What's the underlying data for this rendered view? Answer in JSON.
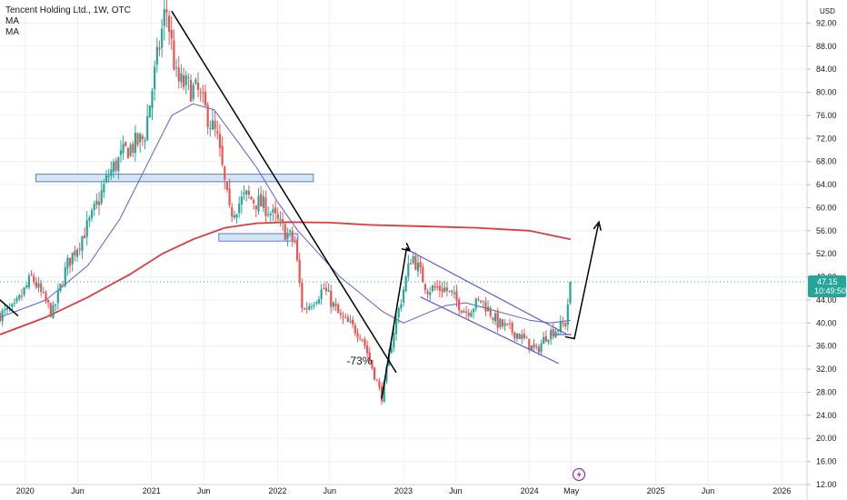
{
  "legend": {
    "symbol_line": "Tencent Holding Ltd., 1W, OTC",
    "ma1": "MA",
    "ma2": "MA"
  },
  "currency_label": "USD",
  "price_badge": {
    "price": "47.15",
    "countdown": "10:49:50"
  },
  "annotation": "-73%",
  "colors": {
    "up": "#26a69a",
    "down": "#ef5350",
    "ma_fast": "#5b5bd6",
    "ma_slow": "#e03a3e",
    "zone_fill": "#cfe0f5",
    "zone_stroke": "#5b7fc4",
    "channel": "#5b5bd6",
    "badge": "#26a69a"
  },
  "chart_data": {
    "type": "candlestick",
    "title": "Tencent Holding Ltd., 1W, OTC",
    "xlabel": "",
    "ylabel": "",
    "ylim": [
      12,
      96
    ],
    "yticks": [
      12.0,
      16.0,
      20.0,
      24.0,
      28.0,
      32.0,
      36.0,
      40.0,
      44.0,
      48.0,
      52.0,
      56.0,
      60.0,
      64.0,
      68.0,
      72.0,
      76.0,
      80.0,
      84.0,
      88.0,
      92.0
    ],
    "xlim": [
      "2019-10-20",
      "2026-03-15"
    ],
    "xticks": [
      {
        "date": "2020-01-01",
        "label": "2020"
      },
      {
        "date": "2020-06-01",
        "label": "Jun"
      },
      {
        "date": "2021-01-01",
        "label": "2021"
      },
      {
        "date": "2021-06-01",
        "label": "Jun"
      },
      {
        "date": "2022-01-01",
        "label": "2022"
      },
      {
        "date": "2022-06-01",
        "label": "Jun"
      },
      {
        "date": "2023-01-01",
        "label": "2023"
      },
      {
        "date": "2023-06-01",
        "label": "Jun"
      },
      {
        "date": "2024-01-01",
        "label": "2024"
      },
      {
        "date": "2024-05-01",
        "label": "May"
      },
      {
        "date": "2025-01-01",
        "label": "2025"
      },
      {
        "date": "2025-06-01",
        "label": "Jun"
      },
      {
        "date": "2026-01-01",
        "label": "2026"
      }
    ],
    "price_path": [
      [
        "2019-10-20",
        41.5
      ],
      [
        "2019-12-01",
        42.5
      ],
      [
        "2020-01-20",
        48
      ],
      [
        "2020-03-20",
        41.5
      ],
      [
        "2020-05-01",
        50
      ],
      [
        "2020-07-10",
        58
      ],
      [
        "2020-09-01",
        66
      ],
      [
        "2020-10-20",
        70
      ],
      [
        "2020-12-10",
        72
      ],
      [
        "2021-02-12",
        95
      ],
      [
        "2021-03-15",
        82
      ],
      [
        "2021-05-15",
        80
      ],
      [
        "2021-07-10",
        72
      ],
      [
        "2021-08-15",
        59
      ],
      [
        "2021-10-01",
        62
      ],
      [
        "2021-12-01",
        60
      ],
      [
        "2022-01-20",
        56
      ],
      [
        "2022-02-20",
        54
      ],
      [
        "2022-03-15",
        42
      ],
      [
        "2022-05-15",
        46
      ],
      [
        "2022-07-01",
        41
      ],
      [
        "2022-09-01",
        38
      ],
      [
        "2022-10-31",
        27
      ],
      [
        "2022-12-01",
        38
      ],
      [
        "2023-01-25",
        52
      ],
      [
        "2023-03-10",
        46
      ],
      [
        "2023-05-01",
        46
      ],
      [
        "2023-07-01",
        42
      ],
      [
        "2023-08-15",
        44
      ],
      [
        "2023-10-01",
        40
      ],
      [
        "2023-12-01",
        38
      ],
      [
        "2024-01-20",
        35
      ],
      [
        "2024-02-20",
        38
      ],
      [
        "2024-03-20",
        39
      ],
      [
        "2024-04-15",
        40
      ],
      [
        "2024-04-22",
        44
      ],
      [
        "2024-04-29",
        47.15
      ]
    ],
    "series": [
      {
        "name": "",
        "kind": "ma_fast",
        "points": [
          [
            "2019-10-20",
            41
          ],
          [
            "2020-03-01",
            44
          ],
          [
            "2020-07-01",
            50
          ],
          [
            "2020-10-01",
            58
          ],
          [
            "2021-01-01",
            69
          ],
          [
            "2021-03-01",
            76
          ],
          [
            "2021-05-01",
            78
          ],
          [
            "2021-07-01",
            77
          ],
          [
            "2021-09-01",
            72
          ],
          [
            "2021-11-01",
            67
          ],
          [
            "2022-01-01",
            61
          ],
          [
            "2022-03-01",
            56
          ],
          [
            "2022-05-01",
            52
          ],
          [
            "2022-07-01",
            48
          ],
          [
            "2022-09-01",
            45
          ],
          [
            "2022-11-01",
            42
          ],
          [
            "2023-01-01",
            40
          ],
          [
            "2023-03-01",
            41.5
          ],
          [
            "2023-05-01",
            43
          ],
          [
            "2023-07-01",
            43.5
          ],
          [
            "2023-09-01",
            42.5
          ],
          [
            "2023-11-01",
            41.5
          ],
          [
            "2024-01-01",
            40.5
          ],
          [
            "2024-03-01",
            40
          ],
          [
            "2024-04-29",
            40.5
          ]
        ]
      },
      {
        "name": "",
        "kind": "ma_slow",
        "points": [
          [
            "2019-10-20",
            38
          ],
          [
            "2020-03-01",
            41
          ],
          [
            "2020-07-01",
            44.5
          ],
          [
            "2020-11-01",
            48.5
          ],
          [
            "2021-02-01",
            52
          ],
          [
            "2021-05-01",
            54.5
          ],
          [
            "2021-08-01",
            56.5
          ],
          [
            "2021-11-01",
            57.3
          ],
          [
            "2022-02-01",
            57.5
          ],
          [
            "2022-06-01",
            57.4
          ],
          [
            "2022-10-01",
            57
          ],
          [
            "2023-02-01",
            56.8
          ],
          [
            "2023-08-01",
            56.5
          ],
          [
            "2024-01-01",
            56
          ],
          [
            "2024-04-29",
            54.5
          ]
        ]
      }
    ],
    "zones": [
      {
        "x1": "2020-02-01",
        "x2": "2022-04-15",
        "y1": 64.5,
        "y2": 65.8
      },
      {
        "x1": "2021-07-15",
        "x2": "2022-03-01",
        "y1": 54.2,
        "y2": 55.5
      }
    ],
    "lines": [
      {
        "style": "black",
        "from": [
          "2019-10-20",
          44
        ],
        "to": [
          "2019-12-10",
          41.3
        ]
      },
      {
        "style": "black",
        "from": [
          "2021-03-01",
          94
        ],
        "to": [
          "2022-12-10",
          31.5
        ]
      },
      {
        "style": "black",
        "from": [
          "2022-10-30",
          27
        ],
        "to": [
          "2023-01-10",
          53
        ]
      },
      {
        "style": "black-arrow",
        "from": [
          "2023-01-10",
          53
        ],
        "to": [
          "2023-01-20",
          52.5
        ]
      },
      {
        "style": "channel",
        "from": [
          "2023-01-20",
          52.5
        ],
        "to": [
          "2024-04-20",
          38
        ]
      },
      {
        "style": "channel",
        "from": [
          "2023-02-20",
          44.5
        ],
        "to": [
          "2024-03-25",
          33
        ]
      },
      {
        "style": "channel",
        "from": [
          "2024-03-15",
          38
        ],
        "to": [
          "2024-04-30",
          38
        ]
      },
      {
        "style": "black",
        "from": [
          "2024-04-15",
          37.6
        ],
        "to": [
          "2024-05-10",
          37.3
        ]
      },
      {
        "style": "black-arrow",
        "from": [
          "2024-05-10",
          37.3
        ],
        "to": [
          "2024-07-20",
          57.5
        ]
      }
    ],
    "annotation": {
      "text": "-73%",
      "x": "2022-07-20",
      "y": 32.8
    },
    "last_price": 47.15
  }
}
